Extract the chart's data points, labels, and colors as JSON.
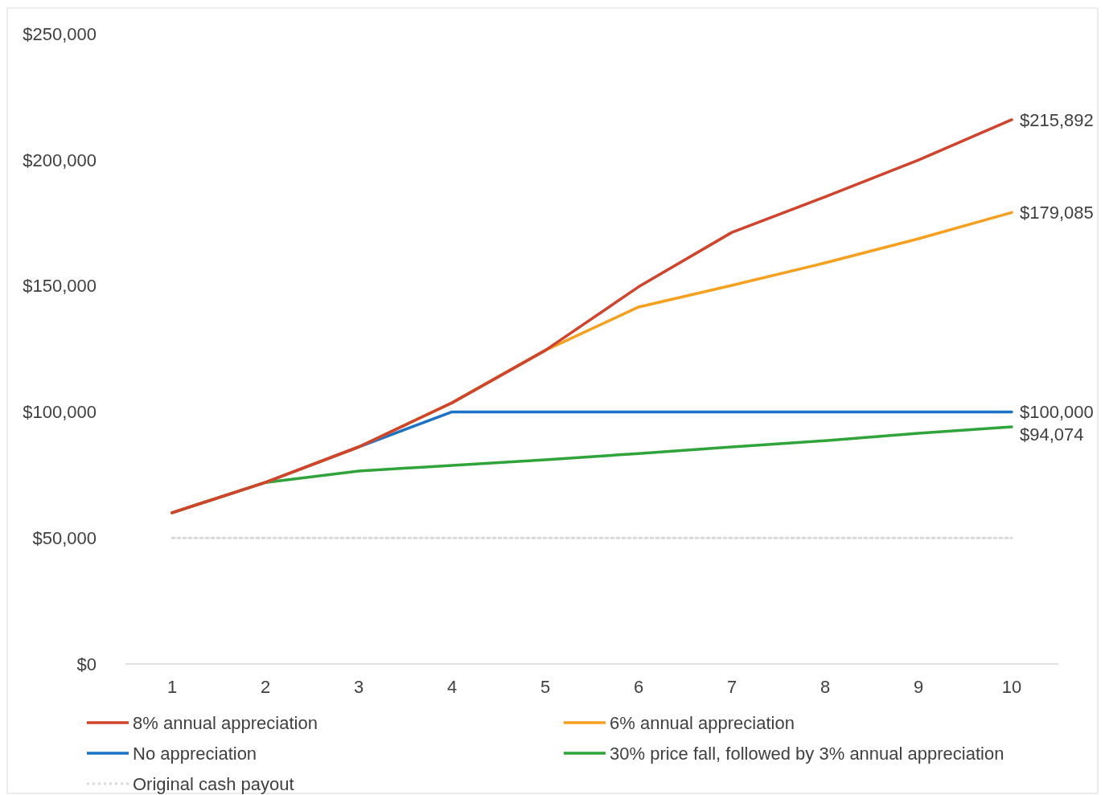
{
  "chart_data": {
    "type": "line",
    "categories": [
      "1",
      "2",
      "3",
      "4",
      "5",
      "6",
      "7",
      "8",
      "9",
      "10"
    ],
    "ylim": [
      0,
      250000
    ],
    "yticks": [
      {
        "value": 0,
        "label": "$0"
      },
      {
        "value": 50000,
        "label": "$50,000"
      },
      {
        "value": 100000,
        "label": "$100,000"
      },
      {
        "value": 150000,
        "label": "$150,000"
      },
      {
        "value": 200000,
        "label": "$200,000"
      },
      {
        "value": 250000,
        "label": "$250,000"
      }
    ],
    "grid": false,
    "legend": "bottom",
    "marker": "none",
    "series": [
      {
        "name": "8% annual appreciation",
        "color": "#d1432a",
        "line_style": "solid",
        "values": [
          60000,
          72000,
          86100,
          103600,
          124400,
          149600,
          171200,
          185300,
          199900,
          215892
        ],
        "value_labels": [
          null,
          null,
          null,
          null,
          null,
          null,
          null,
          null,
          null,
          "$215,892"
        ]
      },
      {
        "name": "6% annual appreciation",
        "color": "#f7a01d",
        "line_style": "solid",
        "values": [
          60000,
          72000,
          86100,
          103600,
          124400,
          141600,
          150200,
          159100,
          168700,
          179085
        ],
        "value_labels": [
          null,
          null,
          null,
          null,
          null,
          null,
          null,
          null,
          null,
          "$179,085"
        ]
      },
      {
        "name": "No appreciation",
        "color": "#1b72c6",
        "line_style": "solid",
        "values": [
          60000,
          72000,
          86100,
          100000,
          100000,
          100000,
          100000,
          100000,
          100000,
          100000
        ],
        "value_labels": [
          null,
          null,
          null,
          null,
          null,
          null,
          null,
          null,
          null,
          "$100,000"
        ]
      },
      {
        "name": "30% price fall, followed by 3% annual appreciation",
        "color": "#2ea43a",
        "line_style": "solid",
        "values": [
          60000,
          72000,
          76500,
          78800,
          81000,
          83500,
          86100,
          88600,
          91500,
          94074
        ],
        "value_labels": [
          null,
          null,
          null,
          null,
          null,
          null,
          null,
          null,
          null,
          "$94,074"
        ]
      },
      {
        "name": "Original cash payout",
        "color": "#d9d9d9",
        "line_style": "dotted",
        "values": [
          50000,
          50000,
          50000,
          50000,
          50000,
          50000,
          50000,
          50000,
          50000,
          50000
        ]
      }
    ]
  }
}
